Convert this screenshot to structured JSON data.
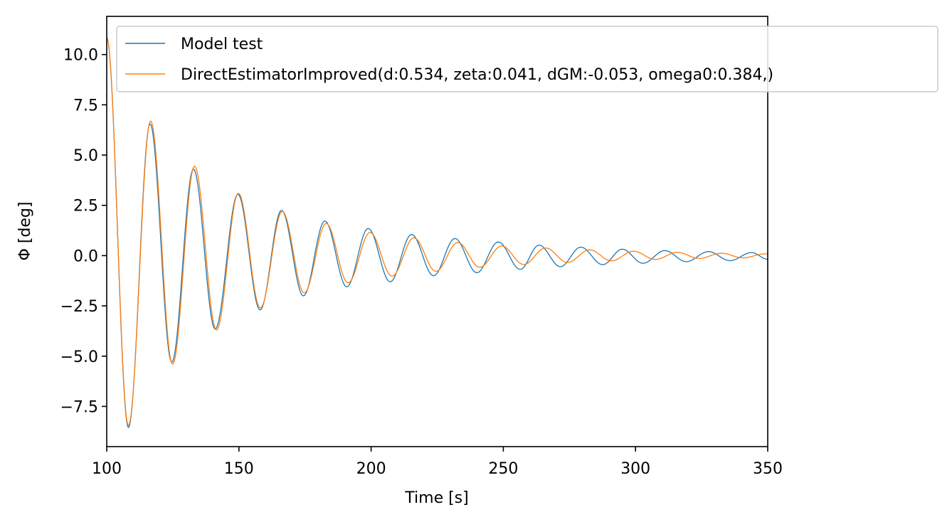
{
  "chart_data": {
    "type": "line",
    "title": "",
    "xlabel": "Time [s]",
    "ylabel": "Φ [deg]",
    "xlim": [
      100,
      350
    ],
    "ylim": [
      -9.5,
      11.9
    ],
    "xticks": [
      100,
      150,
      200,
      250,
      300,
      350
    ],
    "xtick_labels": [
      "100",
      "150",
      "200",
      "250",
      "300",
      "350"
    ],
    "yticks": [
      -7.5,
      -5.0,
      -2.5,
      0.0,
      2.5,
      5.0,
      7.5,
      10.0
    ],
    "ytick_labels": [
      "−7.5",
      "−5.0",
      "−2.5",
      "0.0",
      "2.5",
      "5.0",
      "7.5",
      "10.0"
    ],
    "grid": false,
    "legend_position": "top-right",
    "series": [
      {
        "name": "Model test",
        "color": "#1f77b4",
        "x": [
          100,
          108.2,
          116.4,
          124.6,
          132.8,
          141.0,
          149.6,
          158.0,
          166.1,
          174.4,
          182.5,
          190.8,
          198.9,
          207.2,
          215.3,
          223.6,
          231.7,
          240.0,
          248.1,
          256.4,
          263.5,
          271.6,
          279.3,
          287.6,
          295.0,
          302.8,
          311.1,
          319.2,
          327.6,
          335.7,
          343.9,
          350
        ],
        "y": [
          10.85,
          -8.55,
          6.55,
          -5.3,
          4.3,
          -3.65,
          3.05,
          -2.7,
          2.25,
          -2.0,
          1.72,
          -1.55,
          1.35,
          -1.3,
          1.05,
          -1.0,
          0.85,
          -0.85,
          0.68,
          -0.68,
          0.52,
          -0.55,
          0.42,
          -0.45,
          0.32,
          -0.38,
          0.25,
          -0.3,
          0.2,
          -0.25,
          0.15,
          -0.18
        ]
      },
      {
        "name": "DirectEstimatorImproved(d:0.534, zeta:0.041, dGM:-0.053, omega0:0.384,)",
        "color": "#ff7f0e",
        "x": [
          100,
          108.2,
          116.6,
          124.9,
          133.2,
          141.5,
          149.8,
          158.1,
          166.4,
          174.7,
          183.0,
          191.3,
          199.6,
          207.9,
          216.2,
          224.5,
          232.8,
          241.1,
          249.4,
          257.7,
          266.0,
          274.3,
          282.6,
          290.9,
          299.2,
          307.5,
          315.8,
          324.1,
          332.4,
          340.7,
          349.0,
          350
        ],
        "y": [
          10.85,
          -8.45,
          6.7,
          -5.4,
          4.45,
          -3.7,
          3.1,
          -2.6,
          2.2,
          -1.85,
          1.6,
          -1.35,
          1.15,
          -1.02,
          0.88,
          -0.78,
          0.65,
          -0.58,
          0.48,
          -0.44,
          0.38,
          -0.34,
          0.29,
          -0.26,
          0.22,
          -0.19,
          0.16,
          -0.14,
          0.12,
          -0.11,
          0.09,
          0.08
        ]
      }
    ]
  }
}
